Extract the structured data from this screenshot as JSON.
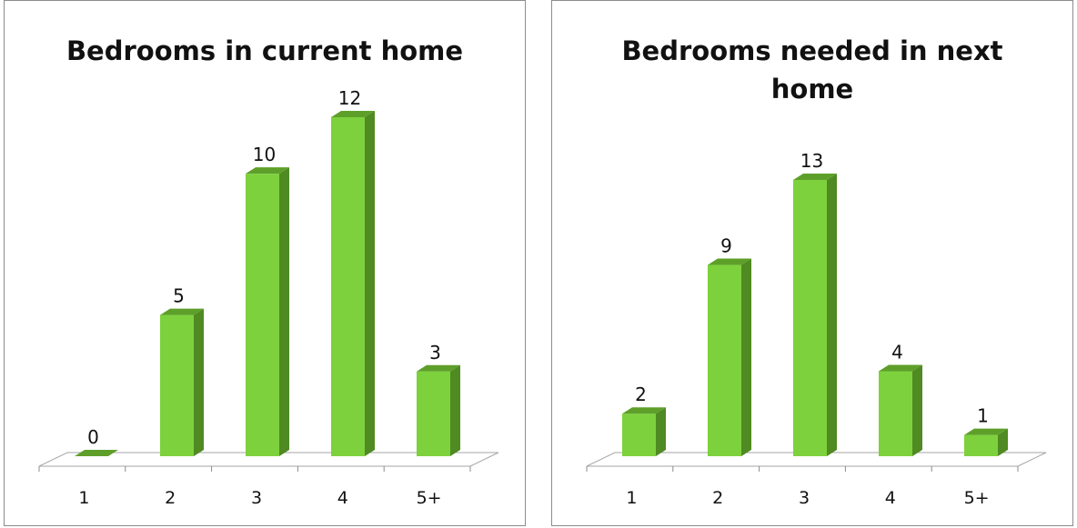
{
  "chart_data": [
    {
      "type": "bar",
      "title": "Bedrooms in current home",
      "categories": [
        "1",
        "2",
        "3",
        "4",
        "5+"
      ],
      "values": [
        0,
        5,
        10,
        12,
        3
      ],
      "data_labels": [
        "0",
        "5",
        "10",
        "12",
        "3"
      ],
      "ylim": [
        0,
        12
      ],
      "grid": false,
      "legend": "none",
      "bar_color": "#7dd13d",
      "bar_side_color": "#4f8a22",
      "bar_top_color": "#5e9f2a"
    },
    {
      "type": "bar",
      "title": "Bedrooms needed in next home",
      "categories": [
        "1",
        "2",
        "3",
        "4",
        "5+"
      ],
      "values": [
        2,
        9,
        13,
        4,
        1
      ],
      "data_labels": [
        "2",
        "9",
        "13",
        "4",
        "1"
      ],
      "ylim": [
        0,
        13
      ],
      "grid": false,
      "legend": "none",
      "bar_color": "#7dd13d",
      "bar_side_color": "#4f8a22",
      "bar_top_color": "#5e9f2a"
    }
  ]
}
